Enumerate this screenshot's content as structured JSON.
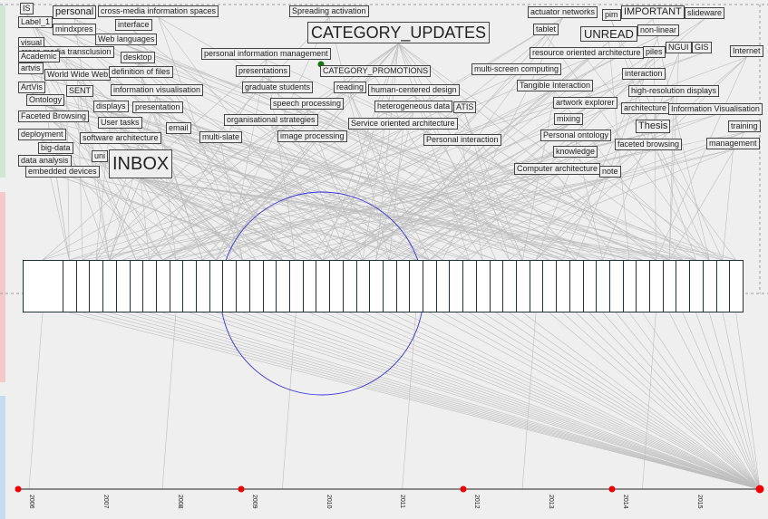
{
  "colors": {
    "background": "#efefef",
    "edge": "#bdbdbd",
    "circle": "#3333dd",
    "timeline_dot": "#ee0000",
    "anchor_dot": "#117711",
    "sidebar_green": "#cfe8cf",
    "sidebar_red": "#f5c9c9",
    "sidebar_blue": "#c6daf0"
  },
  "tags": [
    {
      "text": "IS"
    },
    {
      "text": "personal"
    },
    {
      "text": "cross-media information spaces"
    },
    {
      "text": "Spreading activation"
    },
    {
      "text": "actuator networks"
    },
    {
      "text": "pim"
    },
    {
      "text": "IMPORTANT"
    },
    {
      "text": "slideware"
    },
    {
      "text": "Label_1"
    },
    {
      "text": "interface"
    },
    {
      "text": "mindxpres"
    },
    {
      "text": "CATEGORY_UPDATES"
    },
    {
      "text": "tablet"
    },
    {
      "text": "UNREAD"
    },
    {
      "text": "non-linear"
    },
    {
      "text": "visual"
    },
    {
      "text": "Web languages"
    },
    {
      "text": "cross-media transclusion"
    },
    {
      "text": "desktop"
    },
    {
      "text": "personal information management"
    },
    {
      "text": "resource oriented architecture"
    },
    {
      "text": "piles"
    },
    {
      "text": "NGUI"
    },
    {
      "text": "GIS"
    },
    {
      "text": "Internet"
    },
    {
      "text": "Academic"
    },
    {
      "text": "artvis"
    },
    {
      "text": "World Wide Web"
    },
    {
      "text": "definition of files"
    },
    {
      "text": "presentations"
    },
    {
      "text": "CATEGORY_PROMOTIONS"
    },
    {
      "text": "multi-screen computing"
    },
    {
      "text": "interaction"
    },
    {
      "text": "ArtVis"
    },
    {
      "text": "SENT"
    },
    {
      "text": "information visualisation"
    },
    {
      "text": "graduate students"
    },
    {
      "text": "reading"
    },
    {
      "text": "human-centered design"
    },
    {
      "text": "Tangible Interaction"
    },
    {
      "text": "high-resolution displays"
    },
    {
      "text": "Ontology"
    },
    {
      "text": "displays"
    },
    {
      "text": "presentation"
    },
    {
      "text": "speech processing"
    },
    {
      "text": "heterogeneous data"
    },
    {
      "text": "ATIS"
    },
    {
      "text": "artwork explorer"
    },
    {
      "text": "architecture"
    },
    {
      "text": "Information Visualisation"
    },
    {
      "text": "Faceted Browsing"
    },
    {
      "text": "User tasks"
    },
    {
      "text": "organisational strategies"
    },
    {
      "text": "Service oriented architecture"
    },
    {
      "text": "mixing"
    },
    {
      "text": "Thesis"
    },
    {
      "text": "training"
    },
    {
      "text": "deployment"
    },
    {
      "text": "email"
    },
    {
      "text": "multi-slate"
    },
    {
      "text": "image processing"
    },
    {
      "text": "Personal interaction"
    },
    {
      "text": "Personal ontology"
    },
    {
      "text": "faceted browsing"
    },
    {
      "text": "management"
    },
    {
      "text": "big-data"
    },
    {
      "text": "software architecture"
    },
    {
      "text": "knowledge"
    },
    {
      "text": "data analysis"
    },
    {
      "text": "uni"
    },
    {
      "text": "INBOX"
    },
    {
      "text": "embedded devices"
    },
    {
      "text": "Computer architecture"
    },
    {
      "text": "note"
    }
  ],
  "timeline": {
    "years": [
      "2006",
      "2007",
      "2008",
      "2009",
      "2010",
      "2011",
      "2012",
      "2013",
      "2014",
      "2015"
    ]
  },
  "strip": {
    "cell_count": 52
  }
}
